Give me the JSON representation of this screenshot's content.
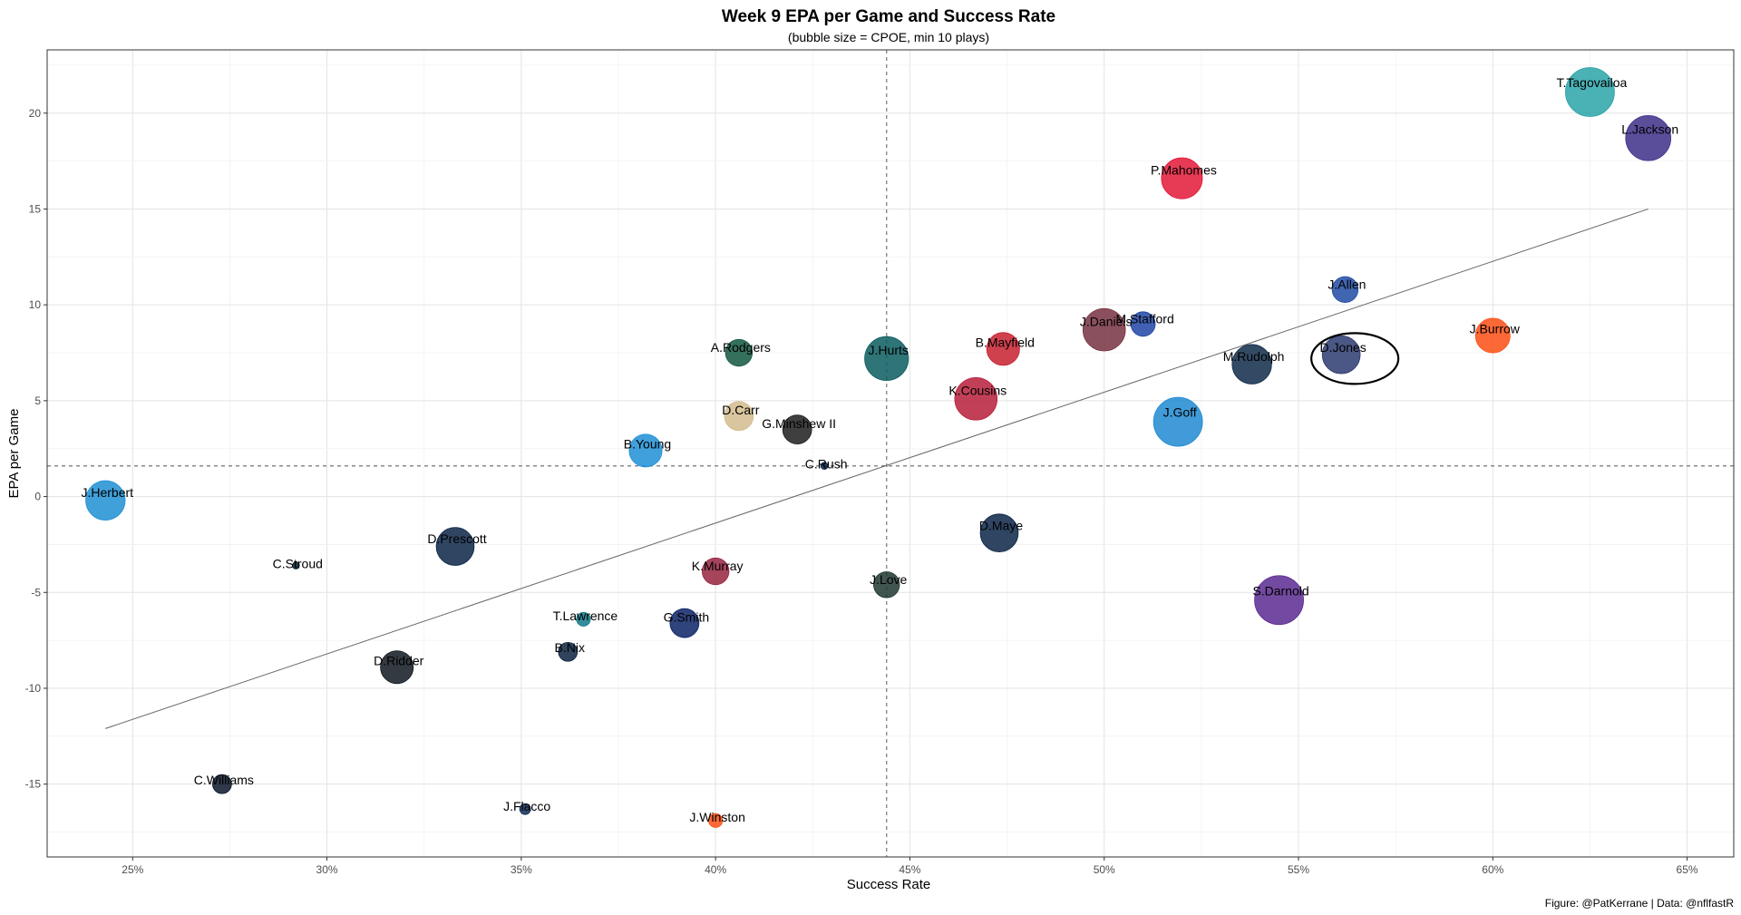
{
  "chart_data": {
    "type": "scatter",
    "title": "Week 9 EPA per Game and Success Rate",
    "subtitle": "(bubble size = CPOE, min 10 plays)",
    "xlabel": "Success Rate",
    "ylabel": "EPA per Game",
    "caption": "Figure: @PatKerrane | Data: @nflfastR",
    "xlim": [
      0.228,
      0.662
    ],
    "ylim": [
      -18.8,
      23.3
    ],
    "x_ticks": [
      0.25,
      0.3,
      0.35,
      0.4,
      0.45,
      0.5,
      0.55,
      0.6,
      0.65
    ],
    "x_tick_labels": [
      "25%",
      "30%",
      "35%",
      "40%",
      "45%",
      "50%",
      "55%",
      "60%",
      "65%"
    ],
    "y_ticks": [
      -15,
      -10,
      -5,
      0,
      5,
      10,
      15,
      20
    ],
    "y_tick_labels": [
      "-15",
      "-10",
      "-5",
      "0",
      "5",
      "10",
      "15",
      "20"
    ],
    "grid": true,
    "reference_lines": {
      "x_mean": 0.444,
      "y_mean": 1.6
    },
    "trend_line": {
      "x": [
        0.243,
        0.64
      ],
      "y": [
        -12.1,
        15.0
      ]
    },
    "highlight": {
      "label": "D.Jones",
      "x": 0.5645,
      "y": 7.2
    },
    "points": [
      {
        "label": "T.Tagovailoa",
        "x": 0.625,
        "y": 21.1,
        "size": 10.0,
        "color": "#2aa3a8"
      },
      {
        "label": "L.Jackson",
        "x": 0.64,
        "y": 18.7,
        "size": 8.5,
        "color": "#3d2f8a"
      },
      {
        "label": "P.Mahomes",
        "x": 0.52,
        "y": 16.6,
        "size": 7.0,
        "color": "#e31837"
      },
      {
        "label": "J.Allen",
        "x": 0.562,
        "y": 10.8,
        "size": 2.8,
        "color": "#1f4ba3"
      },
      {
        "label": "M.Stafford",
        "x": 0.51,
        "y": 9.0,
        "size": 2.5,
        "color": "#1f45a6"
      },
      {
        "label": "J.Burrow",
        "x": 0.6,
        "y": 8.4,
        "size": 5.0,
        "color": "#fb4f14"
      },
      {
        "label": "J.Daniels",
        "x": 0.5,
        "y": 8.7,
        "size": 7.5,
        "color": "#773141"
      },
      {
        "label": "B.Mayfield",
        "x": 0.474,
        "y": 7.7,
        "size": 4.5,
        "color": "#c8202f"
      },
      {
        "label": "J.Hurts",
        "x": 0.444,
        "y": 7.2,
        "size": 8.0,
        "color": "#0b5c5f"
      },
      {
        "label": "M.Rudolph",
        "x": 0.538,
        "y": 6.9,
        "size": 6.5,
        "color": "#0f2a4a"
      },
      {
        "label": "D.Jones",
        "x": 0.561,
        "y": 7.4,
        "size": 6.0,
        "color": "#2b3a6e"
      },
      {
        "label": "A.Rodgers",
        "x": 0.406,
        "y": 7.5,
        "size": 3.0,
        "color": "#125740"
      },
      {
        "label": "K.Cousins",
        "x": 0.467,
        "y": 5.1,
        "size": 7.5,
        "color": "#b71e3a"
      },
      {
        "label": "J.Goff",
        "x": 0.519,
        "y": 3.9,
        "size": 10.0,
        "color": "#1f8ad1"
      },
      {
        "label": "D.Carr",
        "x": 0.406,
        "y": 4.2,
        "size": 3.5,
        "color": "#d3bc8d"
      },
      {
        "label": "G.Minshew II",
        "x": 0.421,
        "y": 3.5,
        "size": 3.5,
        "color": "#1d1d1d"
      },
      {
        "label": "B.Young",
        "x": 0.382,
        "y": 2.4,
        "size": 4.5,
        "color": "#1e8fd6"
      },
      {
        "label": "C.Rush",
        "x": 0.428,
        "y": 1.6,
        "size": 0.2,
        "color": "#041e42"
      },
      {
        "label": "J.Herbert",
        "x": 0.243,
        "y": -0.2,
        "size": 6.5,
        "color": "#1f8fd4"
      },
      {
        "label": "D.Maye",
        "x": 0.473,
        "y": -1.9,
        "size": 6.0,
        "color": "#0a2446"
      },
      {
        "label": "D.Prescott",
        "x": 0.333,
        "y": -2.6,
        "size": 6.0,
        "color": "#0a2446"
      },
      {
        "label": "C.Stroud",
        "x": 0.292,
        "y": -3.6,
        "size": 0.2,
        "color": "#03202f"
      },
      {
        "label": "K.Murray",
        "x": 0.4,
        "y": -3.9,
        "size": 3.0,
        "color": "#97233f"
      },
      {
        "label": "J.Love",
        "x": 0.444,
        "y": -4.6,
        "size": 2.8,
        "color": "#203731"
      },
      {
        "label": "S.Darnold",
        "x": 0.545,
        "y": -5.4,
        "size": 10.0,
        "color": "#5b2a91"
      },
      {
        "label": "G.Smith",
        "x": 0.392,
        "y": -6.6,
        "size": 3.5,
        "color": "#0b2265"
      },
      {
        "label": "T.Lawrence",
        "x": 0.366,
        "y": -6.4,
        "size": 0.8,
        "color": "#11798b"
      },
      {
        "label": "B.Nix",
        "x": 0.362,
        "y": -8.1,
        "size": 1.5,
        "color": "#0b2240"
      },
      {
        "label": "D.Ridder",
        "x": 0.318,
        "y": -8.9,
        "size": 4.5,
        "color": "#101820"
      },
      {
        "label": "C.Williams",
        "x": 0.273,
        "y": -15.0,
        "size": 1.5,
        "color": "#0b162a"
      },
      {
        "label": "J.Flacco",
        "x": 0.351,
        "y": -16.3,
        "size": 0.5,
        "color": "#0e2c54"
      },
      {
        "label": "J.Winston",
        "x": 0.4,
        "y": -16.9,
        "size": 0.8,
        "color": "#fb4f14"
      }
    ]
  }
}
